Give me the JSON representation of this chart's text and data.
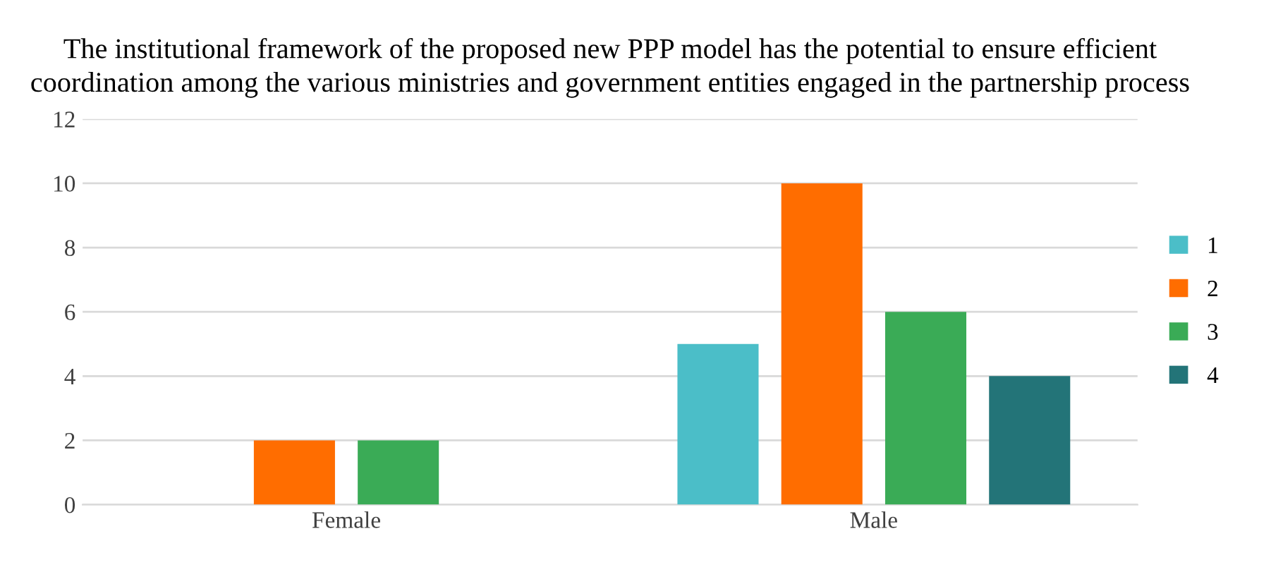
{
  "chart_data": {
    "type": "bar",
    "title": "The institutional framework of the proposed new PPP model has the potential to ensure efficient\ncoordination among the various ministries and government entities engaged in the partnership process",
    "categories": [
      "Female",
      "Male"
    ],
    "series": [
      {
        "name": "1",
        "color": "#4bbec8",
        "values": [
          0,
          5
        ]
      },
      {
        "name": "2",
        "color": "#ff6d00",
        "values": [
          2,
          10
        ]
      },
      {
        "name": "3",
        "color": "#3aab56",
        "values": [
          2,
          6
        ]
      },
      {
        "name": "4",
        "color": "#237478",
        "values": [
          0,
          4
        ]
      }
    ],
    "ylim": [
      0,
      12
    ],
    "yticks": [
      0,
      2,
      4,
      6,
      8,
      10,
      12
    ],
    "grid": "y",
    "legend": "right"
  }
}
